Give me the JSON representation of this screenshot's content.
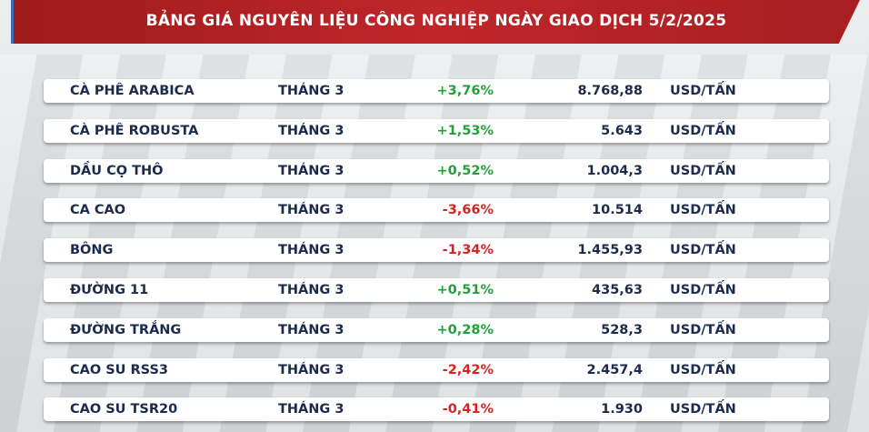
{
  "header": {
    "title": "BẢNG GIÁ NGUYÊN LIỆU CÔNG NGHIỆP NGÀY GIAO DỊCH 5/2/2025"
  },
  "table": {
    "rows": [
      [
        "CÀ PHÊ ARABICA",
        "THÁNG 3",
        "+3,76%",
        "8.768,88",
        "USD/TẤN"
      ],
      [
        "CÀ PHÊ ROBUSTA",
        "THÁNG 3",
        "+1,53%",
        "5.643",
        "USD/TẤN"
      ],
      [
        "DẦU CỌ THÔ",
        "THÁNG 3",
        "+0,52%",
        "1.004,3",
        "USD/TẤN"
      ],
      [
        "CA CAO",
        "THÁNG 3",
        "-3,66%",
        "10.514",
        "USD/TẤN"
      ],
      [
        "BÔNG",
        "THÁNG 3",
        "-1,34%",
        "1.455,93",
        "USD/TẤN"
      ],
      [
        "ĐƯỜNG 11",
        "THÁNG 3",
        "+0,51%",
        "435,63",
        "USD/TẤN"
      ],
      [
        "ĐƯỜNG TRẮNG",
        "THÁNG 3",
        "+0,28%",
        "528,3",
        "USD/TẤN"
      ],
      [
        "CAO SU RSS3",
        "THÁNG 3",
        "-2,42%",
        "2.457,4",
        "USD/TẤN"
      ],
      [
        "CAO SU TSR20",
        "THÁNG 3",
        "-0,41%",
        "1.930",
        "USD/TẤN"
      ]
    ]
  }
}
